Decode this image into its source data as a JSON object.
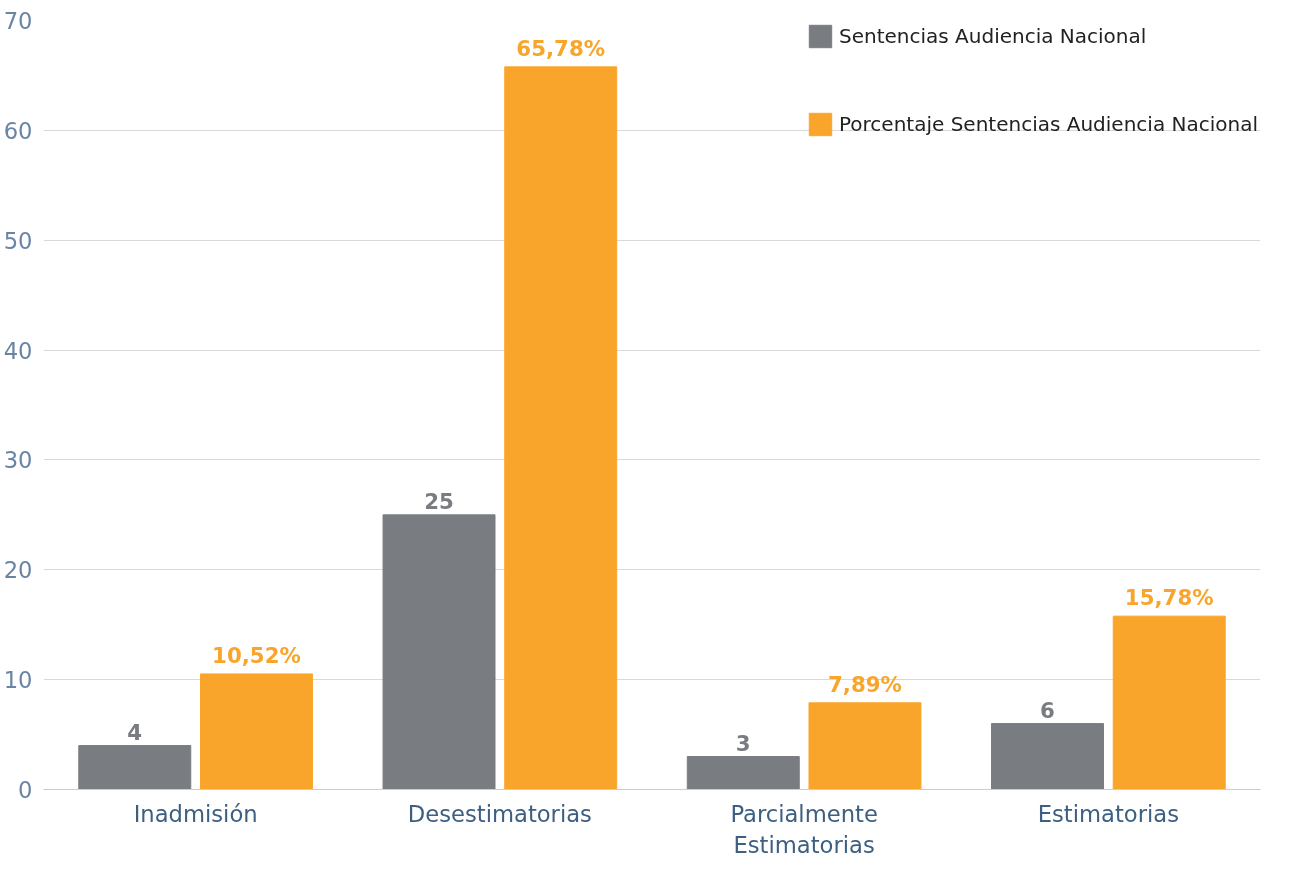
{
  "chart_data": {
    "type": "bar",
    "categories": [
      "Inadmisión",
      "Desestimatorias",
      "Parcialmente Estimatorias",
      "Estimatorias"
    ],
    "series": [
      {
        "name": "Sentencias Audiencia Nacional",
        "color": "#797c80",
        "values": [
          4,
          25,
          3,
          6
        ],
        "value_labels": [
          "4",
          "25",
          "3",
          "6"
        ]
      },
      {
        "name": "Porcentaje Sentencias Audiencia Nacional",
        "color": "#f9a52b",
        "values": [
          10.52,
          65.78,
          7.89,
          15.78
        ],
        "value_labels": [
          "10,52%",
          "65,78%",
          "7,89%",
          "15,78%"
        ]
      }
    ],
    "ylim": [
      0,
      70
    ],
    "yticks": [
      0,
      10,
      20,
      30,
      40,
      50,
      60,
      70
    ],
    "grid": "y",
    "legend": "top right"
  }
}
